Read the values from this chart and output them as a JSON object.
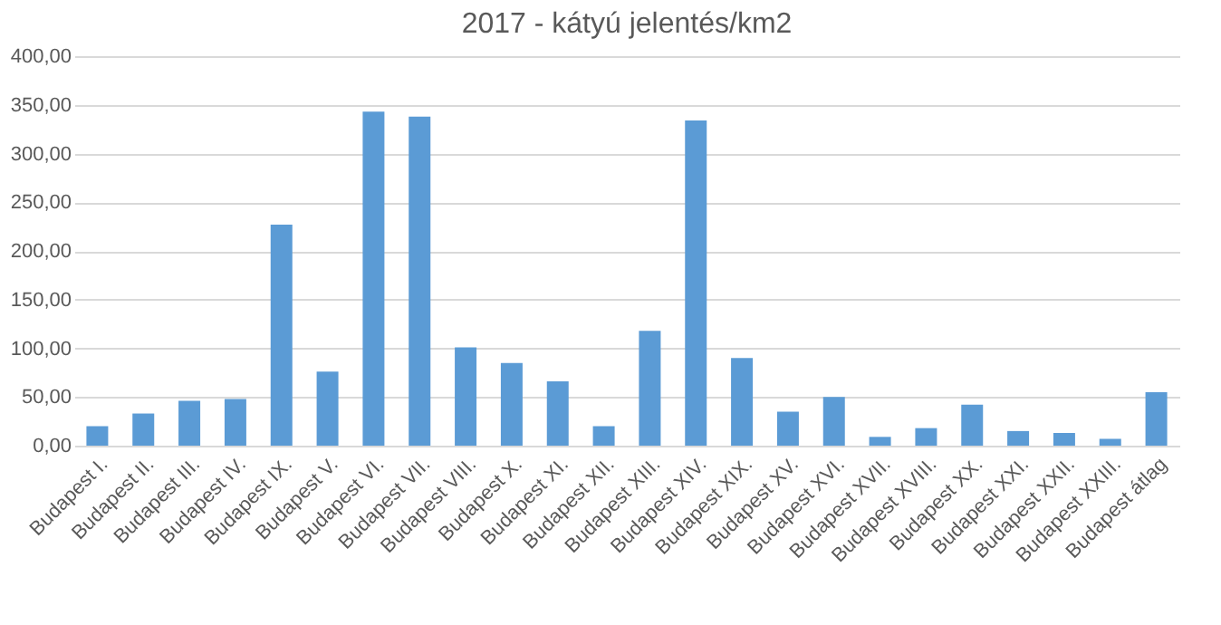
{
  "chart_data": {
    "type": "bar",
    "title": "2017 - kátyú jelentés/km2",
    "categories": [
      "Budapest I.",
      "Budapest II.",
      "Budapest III.",
      "Budapest IV.",
      "Budapest IX.",
      "Budapest V.",
      "Budapest VI.",
      "Budapest VII.",
      "Budapest VIII.",
      "Budapest X.",
      "Budapest XI.",
      "Budapest XII.",
      "Budapest XIII.",
      "Budapest XIV.",
      "Budapest XIX.",
      "Budapest XV.",
      "Budapest XVI.",
      "Budapest XVII.",
      "Budapest XVIII.",
      "Budapest XX.",
      "Budapest XXI.",
      "Budapest XXII.",
      "Budapest XXIII.",
      "Budapest átlag"
    ],
    "values": [
      20,
      33,
      46,
      48,
      227,
      76,
      343,
      338,
      101,
      85,
      66,
      20,
      118,
      334,
      90,
      35,
      50,
      9,
      18,
      42,
      15,
      13,
      7,
      55
    ],
    "color": "#5b9bd5",
    "ylim": [
      0,
      400
    ],
    "yticks": [
      {
        "value": 0,
        "label": "0,00"
      },
      {
        "value": 50,
        "label": "50,00"
      },
      {
        "value": 100,
        "label": "100,00"
      },
      {
        "value": 150,
        "label": "150,00"
      },
      {
        "value": 200,
        "label": "200,00"
      },
      {
        "value": 250,
        "label": "250,00"
      },
      {
        "value": 300,
        "label": "300,00"
      },
      {
        "value": 350,
        "label": "350,00"
      },
      {
        "value": 400,
        "label": "400,00"
      }
    ],
    "grid": "y"
  }
}
